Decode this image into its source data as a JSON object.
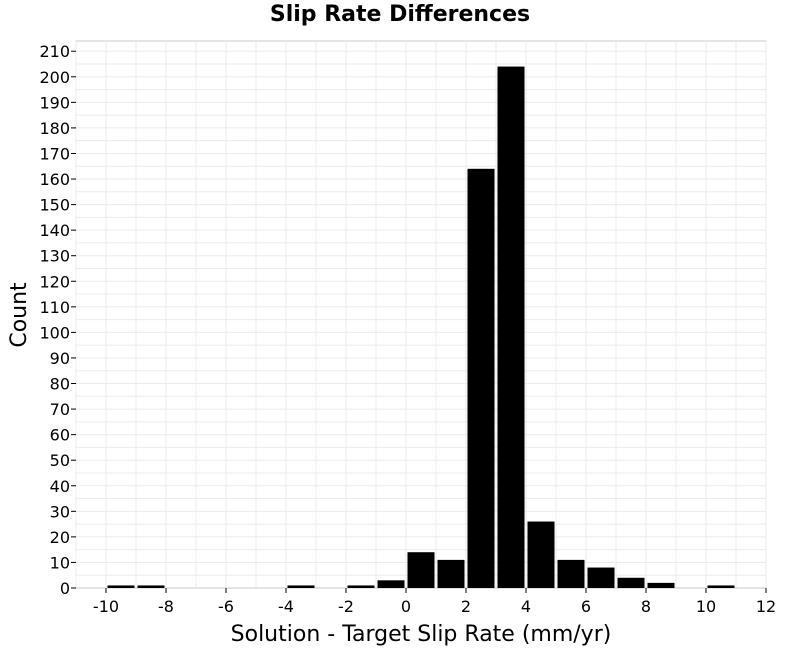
{
  "chart_data": {
    "type": "bar",
    "title": "Slip Rate Differences",
    "xlabel": "Solution - Target Slip Rate (mm/yr)",
    "ylabel": "Count",
    "xlim": [
      -11,
      12
    ],
    "ylim": [
      0,
      214
    ],
    "x_ticks": [
      -10,
      -8,
      -6,
      -4,
      -2,
      0,
      2,
      4,
      6,
      8,
      10,
      12
    ],
    "y_ticks": [
      0,
      10,
      20,
      30,
      40,
      50,
      60,
      70,
      80,
      90,
      100,
      110,
      120,
      130,
      140,
      150,
      160,
      170,
      180,
      190,
      200,
      210
    ],
    "bin_width": 1,
    "x": [
      -10,
      -9,
      -4,
      -2,
      -1,
      0,
      1,
      2,
      3,
      4,
      5,
      6,
      7,
      8,
      10
    ],
    "values": [
      1,
      1,
      1,
      1,
      3,
      14,
      11,
      164,
      204,
      26,
      11,
      8,
      4,
      2,
      1
    ],
    "bar_color": "#000000",
    "grid": true
  }
}
